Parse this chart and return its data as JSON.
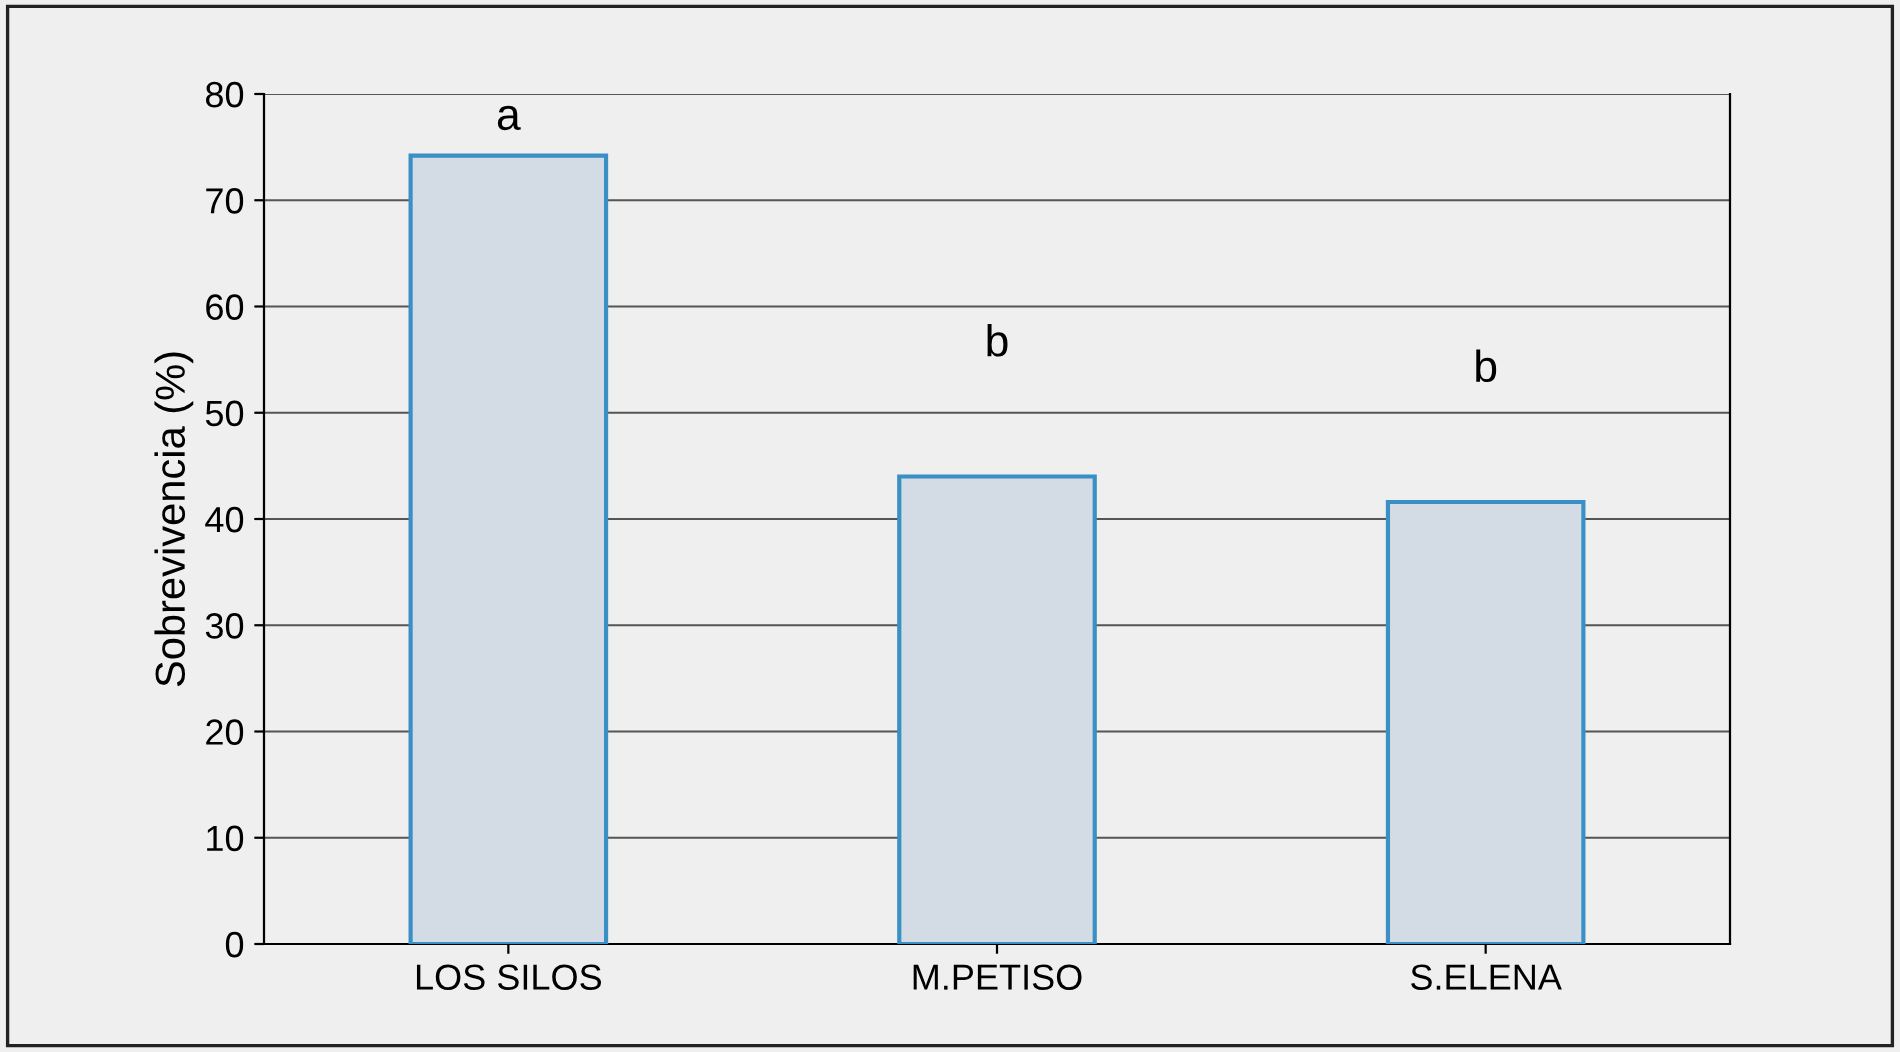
{
  "chart_data": {
    "type": "bar",
    "ylabel": "Sobrevivencia (%)",
    "categories": [
      "LOS SILOS",
      "M.PETISO",
      "S.ELENA"
    ],
    "values": [
      74.2,
      44.0,
      41.6
    ],
    "color": "#d3dbe4",
    "ylim": [
      0,
      80
    ],
    "yticks": [
      0,
      10,
      20,
      30,
      40,
      50,
      60,
      70,
      80
    ],
    "grid": "y",
    "annotations": [
      "a",
      "b",
      "b"
    ]
  }
}
